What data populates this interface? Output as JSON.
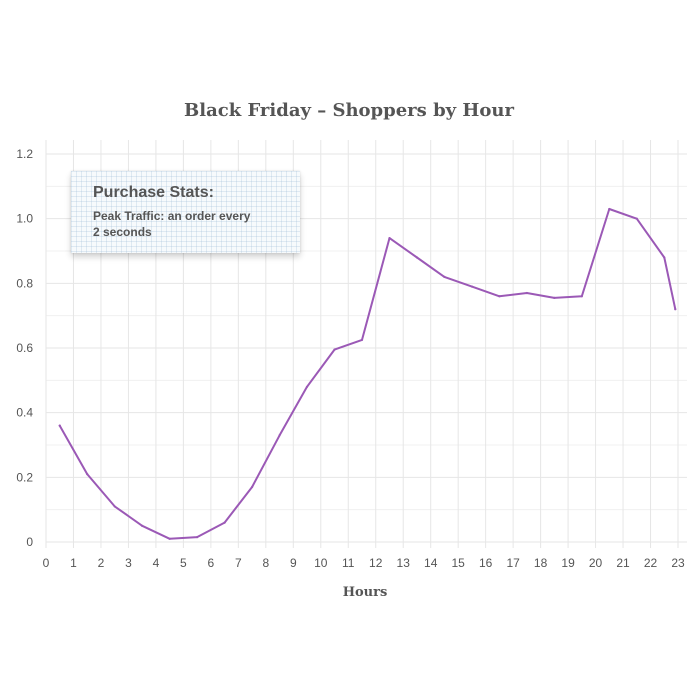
{
  "chart_data": {
    "type": "line",
    "title": "Black Friday – Shoppers by Hour",
    "xlabel": "Hours",
    "ylabel": "",
    "xlim": [
      0,
      23
    ],
    "ylim": [
      0,
      1.2
    ],
    "x_ticks": [
      "0",
      "1",
      "2",
      "3",
      "4",
      "5",
      "6",
      "7",
      "8",
      "9",
      "10",
      "11",
      "12",
      "13",
      "14",
      "15",
      "16",
      "17",
      "18",
      "19",
      "20",
      "21",
      "22",
      "23"
    ],
    "y_ticks": [
      "0",
      "0.2",
      "0.4",
      "0.6",
      "0.8",
      "1.0",
      "1.2"
    ],
    "grid": true,
    "series": [
      {
        "color": "#9b59b6",
        "x": [
          0.5,
          1.5,
          2.5,
          3.5,
          4.5,
          5.5,
          6.5,
          7.5,
          8.5,
          9.5,
          10.5,
          11.5,
          12.5,
          13.5,
          14.5,
          15.5,
          16.5,
          17.5,
          18.5,
          19.5,
          20.5,
          21.5,
          22.5,
          22.9
        ],
        "values": [
          0.36,
          0.21,
          0.11,
          0.05,
          0.01,
          0.015,
          0.06,
          0.17,
          0.33,
          0.48,
          0.595,
          0.625,
          0.94,
          0.88,
          0.82,
          0.79,
          0.76,
          0.77,
          0.755,
          0.76,
          1.03,
          1.0,
          0.88,
          0.72
        ]
      }
    ]
  },
  "annotation": {
    "title": "Purchase Stats:",
    "line1": "Peak Traffic: an order every",
    "line2": "2 seconds"
  },
  "colors": {
    "series": "#9b59b6",
    "text": "#555555",
    "grid": "#e6e6e6"
  }
}
